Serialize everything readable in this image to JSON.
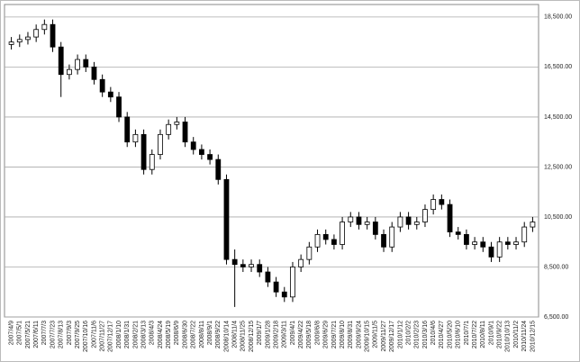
{
  "chart_data": {
    "type": "candlestick",
    "categories": [
      "2007/4/9",
      "2007/5/1",
      "2007/5/21",
      "2007/6/11",
      "2007/7/3",
      "2007/7/23",
      "2007/8/13",
      "2007/9/3",
      "2007/9/25",
      "2007/10/16",
      "2007/11/6",
      "2007/11/27",
      "2007/12/17",
      "2008/1/10",
      "2008/1/31",
      "2008/2/21",
      "2008/3/13",
      "2008/4/3",
      "2008/4/24",
      "2008/5/19",
      "2008/6/9",
      "2008/6/30",
      "2008/7/22",
      "2008/8/11",
      "2008/9/1",
      "2008/9/22",
      "2008/10/14",
      "2008/11/4",
      "2008/11/25",
      "2008/12/15",
      "2009/1/7",
      "2009/1/28",
      "2009/2/18",
      "2009/3/11",
      "2009/4/1",
      "2009/4/22",
      "2009/5/18",
      "2009/6/8",
      "2009/6/29",
      "2009/7/21",
      "2009/8/10",
      "2009/8/31",
      "2009/9/24",
      "2009/10/15",
      "2009/11/5",
      "2009/11/27",
      "2009/12/17",
      "2010/1/12",
      "2010/2/2",
      "2010/2/23",
      "2010/3/16",
      "2010/4/6",
      "2010/4/27",
      "2010/5/20",
      "2010/6/10",
      "2010/7/1",
      "2010/7/22",
      "2010/8/11",
      "2010/9/1",
      "2010/9/22",
      "2010/10/13",
      "2010/11/2",
      "2010/11/24",
      "2010/12/15"
    ],
    "open": [
      17400,
      17500,
      17600,
      17700,
      18000,
      18200,
      17300,
      16200,
      16400,
      16800,
      16500,
      16000,
      15500,
      15300,
      14500,
      13500,
      13800,
      12400,
      13000,
      13800,
      14200,
      14300,
      13500,
      13200,
      13000,
      12800,
      12000,
      8800,
      8600,
      8500,
      8600,
      8300,
      7900,
      7500,
      7300,
      8500,
      8800,
      9300,
      9800,
      9600,
      9400,
      10300,
      10500,
      10200,
      10300,
      9800,
      9300,
      10100,
      10500,
      10200,
      10300,
      10800,
      11200,
      11000,
      9900,
      9800,
      9400,
      9500,
      9300,
      8900,
      9500,
      9400,
      9500,
      10100
    ],
    "high": [
      17700,
      17800,
      17900,
      18200,
      18400,
      18400,
      17500,
      16600,
      17000,
      17000,
      16700,
      16200,
      15700,
      15500,
      14700,
      14000,
      14000,
      13200,
      14000,
      14400,
      14500,
      14500,
      13700,
      13400,
      13200,
      13000,
      12200,
      9200,
      8800,
      8800,
      8800,
      8500,
      8100,
      7700,
      8700,
      9000,
      9500,
      10000,
      10000,
      9800,
      10500,
      10700,
      10700,
      10500,
      10500,
      10000,
      10300,
      10700,
      10700,
      10500,
      11000,
      11400,
      11400,
      11200,
      10100,
      10000,
      9700,
      9700,
      9500,
      9700,
      9700,
      9700,
      10300,
      10500
    ],
    "low": [
      17200,
      17300,
      17400,
      17500,
      17800,
      17100,
      15300,
      16000,
      16200,
      16300,
      15800,
      15300,
      15100,
      14300,
      13300,
      13300,
      12200,
      12200,
      12800,
      13600,
      14000,
      13300,
      13000,
      12800,
      12600,
      11800,
      8600,
      6900,
      8300,
      8300,
      8100,
      7700,
      7300,
      7100,
      7100,
      8300,
      8600,
      9100,
      9400,
      9200,
      9200,
      10100,
      10000,
      10000,
      9600,
      9100,
      9100,
      9900,
      10000,
      10000,
      10100,
      10600,
      10800,
      9700,
      9600,
      9200,
      9200,
      9100,
      8700,
      8700,
      9200,
      9200,
      9300,
      9900
    ],
    "close": [
      17500,
      17600,
      17700,
      18000,
      18200,
      17300,
      16200,
      16400,
      16800,
      16500,
      16000,
      15500,
      15300,
      14500,
      13500,
      13800,
      12400,
      13000,
      13800,
      14200,
      14300,
      13500,
      13200,
      13000,
      12800,
      12000,
      8800,
      8600,
      8500,
      8600,
      8300,
      7900,
      7500,
      7300,
      8500,
      8800,
      9300,
      9800,
      9600,
      9400,
      10300,
      10500,
      10200,
      10300,
      9800,
      9300,
      10100,
      10500,
      10200,
      10300,
      10800,
      11200,
      11000,
      9900,
      9800,
      9400,
      9500,
      9300,
      8900,
      9500,
      9400,
      9500,
      10100,
      10300
    ],
    "ylim": [
      6500,
      19000
    ],
    "yticks": [
      {
        "value": 6500,
        "label": "6,500.00"
      },
      {
        "value": 8500,
        "label": "8,500.00"
      },
      {
        "value": 10500,
        "label": "10,500.00"
      },
      {
        "value": 12500,
        "label": "12,500.00"
      },
      {
        "value": 14500,
        "label": "14,500.00"
      },
      {
        "value": 16500,
        "label": "16,500.00"
      },
      {
        "value": 18500,
        "label": "18,500.00"
      }
    ],
    "grid": true,
    "up_color": "#ffffff",
    "down_color": "#000000"
  }
}
